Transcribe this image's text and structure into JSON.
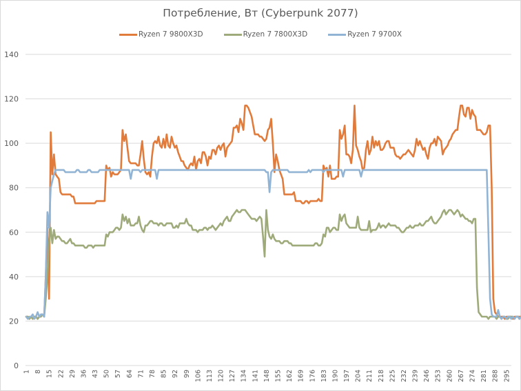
{
  "chart_data": {
    "type": "line",
    "title": "Потребление, Вт (Cyberpunk 2077)",
    "xlabel": "",
    "ylabel": "",
    "ylim": [
      0,
      140
    ],
    "yticks": [
      0,
      20,
      40,
      60,
      80,
      100,
      120,
      140
    ],
    "grid": true,
    "legend_position": "top",
    "x_tick_labels": [
      1,
      8,
      15,
      22,
      29,
      36,
      43,
      50,
      57,
      64,
      71,
      78,
      85,
      92,
      99,
      106,
      113,
      120,
      127,
      134,
      141,
      148,
      155,
      162,
      169,
      176,
      183,
      190,
      197,
      204,
      211,
      218,
      225,
      232,
      239,
      246,
      253,
      260,
      267,
      274,
      281,
      288,
      295
    ],
    "x_count": 298,
    "series": [
      {
        "name": "Ryzen 7 9800X3D",
        "color": "#e07b3c",
        "values": [
          22,
          22,
          21,
          22,
          21,
          22,
          22,
          21,
          22,
          22,
          23,
          22,
          40,
          62,
          30,
          105,
          86,
          95,
          86,
          85,
          84,
          78,
          77,
          77,
          77,
          77,
          77,
          77,
          76,
          76,
          73,
          73,
          73,
          73,
          73,
          73,
          73,
          73,
          73,
          73,
          73,
          73,
          73,
          74,
          74,
          74,
          74,
          74,
          74,
          90,
          88,
          89,
          85,
          87,
          86,
          86,
          86,
          87,
          88,
          106,
          101,
          104,
          98,
          92,
          91,
          91,
          91,
          91,
          90,
          90,
          95,
          101,
          93,
          87,
          86,
          87,
          85,
          94,
          100,
          101,
          100,
          103,
          99,
          98,
          102,
          98,
          104,
          99,
          98,
          103,
          100,
          98,
          99,
          96,
          94,
          92,
          92,
          90,
          89,
          88,
          90,
          91,
          90,
          94,
          88,
          92,
          93,
          91,
          96,
          96,
          94,
          90,
          94,
          93,
          97,
          97,
          95,
          98,
          99,
          97,
          99,
          100,
          94,
          98,
          99,
          100,
          101,
          107,
          107,
          108,
          105,
          111,
          109,
          106,
          117,
          117,
          116,
          114,
          112,
          108,
          104,
          104,
          104,
          103,
          103,
          102,
          101,
          102,
          106,
          107,
          111,
          100,
          87,
          95,
          92,
          88,
          86,
          84,
          77,
          77,
          77,
          77,
          77,
          77,
          78,
          74,
          74,
          74,
          74,
          73,
          73,
          74,
          74,
          73,
          74,
          74,
          74,
          74,
          74,
          75,
          74,
          74,
          90,
          88,
          89,
          85,
          90,
          84,
          84,
          84,
          85,
          85,
          106,
          102,
          104,
          108,
          95,
          95,
          94,
          91,
          97,
          117,
          99,
          97,
          94,
          92,
          88,
          89,
          97,
          101,
          95,
          97,
          103,
          98,
          101,
          99,
          101,
          97,
          97,
          98,
          100,
          101,
          101,
          98,
          98,
          98,
          95,
          94,
          94,
          93,
          94,
          95,
          95,
          96,
          97,
          96,
          95,
          94,
          97,
          102,
          99,
          101,
          99,
          97,
          98,
          95,
          93,
          98,
          100,
          100,
          102,
          99,
          103,
          102,
          101,
          95,
          97,
          98,
          99,
          101,
          102,
          104,
          105,
          106,
          106,
          112,
          117,
          117,
          113,
          112,
          116,
          116,
          111,
          115,
          113,
          112,
          106,
          106,
          106,
          105,
          104,
          104,
          105,
          108,
          108,
          80,
          30,
          24,
          23,
          22,
          22,
          22,
          22,
          21,
          22,
          22,
          22,
          22,
          21,
          22,
          22,
          22,
          22,
          22,
          21,
          22,
          23,
          22,
          22,
          22,
          21,
          22
        ]
      },
      {
        "name": "Ryzen 7 7800X3D",
        "color": "#9eaa7a",
        "values": [
          22,
          22,
          21,
          22,
          21,
          22,
          22,
          21,
          22,
          22,
          23,
          22,
          30,
          40,
          55,
          62,
          55,
          61,
          57,
          58,
          58,
          57,
          56,
          56,
          55,
          55,
          56,
          57,
          55,
          55,
          54,
          54,
          54,
          54,
          54,
          54,
          53,
          53,
          54,
          54,
          54,
          53,
          54,
          54,
          54,
          54,
          54,
          54,
          54,
          59,
          58,
          60,
          60,
          60,
          61,
          62,
          62,
          61,
          62,
          68,
          65,
          67,
          64,
          66,
          63,
          63,
          63,
          64,
          64,
          67,
          63,
          61,
          60,
          63,
          63,
          64,
          65,
          65,
          64,
          64,
          64,
          63,
          64,
          64,
          63,
          63,
          64,
          64,
          64,
          64,
          62,
          62,
          63,
          62,
          64,
          64,
          64,
          64,
          66,
          64,
          63,
          63,
          61,
          61,
          61,
          60,
          61,
          61,
          61,
          62,
          62,
          61,
          62,
          62,
          63,
          62,
          61,
          62,
          63,
          64,
          63,
          65,
          66,
          67,
          65,
          65,
          67,
          68,
          69,
          70,
          69,
          69,
          70,
          70,
          70,
          69,
          68,
          67,
          66,
          66,
          66,
          65,
          66,
          67,
          66,
          58,
          49,
          70,
          61,
          58,
          57,
          59,
          57,
          56,
          56,
          56,
          55,
          55,
          56,
          56,
          56,
          55,
          55,
          54,
          54,
          54,
          54,
          54,
          54,
          54,
          54,
          54,
          54,
          54,
          54,
          54,
          54,
          55,
          55,
          54,
          54,
          55,
          59,
          58,
          62,
          62,
          60,
          61,
          62,
          62,
          61,
          61,
          68,
          65,
          67,
          68,
          64,
          63,
          62,
          62,
          62,
          62,
          62,
          67,
          62,
          61,
          61,
          61,
          61,
          61,
          65,
          60,
          61,
          61,
          61,
          62,
          64,
          62,
          63,
          63,
          62,
          63,
          64,
          63,
          63,
          63,
          63,
          62,
          62,
          61,
          60,
          60,
          61,
          62,
          62,
          63,
          62,
          62,
          63,
          63,
          63,
          64,
          63,
          63,
          64,
          65,
          65,
          66,
          67,
          65,
          64,
          64,
          65,
          66,
          67,
          69,
          70,
          68,
          69,
          70,
          70,
          69,
          68,
          69,
          70,
          69,
          67,
          68,
          67,
          66,
          66,
          65,
          65,
          64,
          66,
          66,
          35,
          24,
          23,
          22,
          22,
          22,
          22,
          21,
          22,
          22,
          22,
          22,
          21,
          22,
          22,
          21,
          22,
          22,
          21,
          21,
          22,
          22,
          22,
          21,
          22,
          22,
          21
        ]
      },
      {
        "name": "Ryzen 7 9700X",
        "color": "#92b4d4",
        "values": [
          22,
          21,
          22,
          22,
          23,
          21,
          22,
          24,
          22,
          23,
          23,
          22,
          40,
          69,
          62,
          80,
          83,
          86,
          88,
          88,
          88,
          88,
          88,
          88,
          87,
          87,
          87,
          87,
          87,
          87,
          87,
          88,
          88,
          87,
          87,
          87,
          87,
          87,
          88,
          88,
          87,
          87,
          87,
          87,
          87,
          88,
          88,
          88,
          88,
          88,
          88,
          88,
          88,
          88,
          88,
          88,
          88,
          88,
          88,
          88,
          88,
          88,
          88,
          88,
          84,
          88,
          88,
          88,
          88,
          88,
          87,
          88,
          88,
          88,
          88,
          88,
          88,
          88,
          88,
          88,
          84,
          88,
          88,
          88,
          88,
          88,
          88,
          88,
          88,
          88,
          88,
          88,
          88,
          88,
          88,
          88,
          88,
          88,
          88,
          88,
          88,
          88,
          88,
          88,
          88,
          88,
          88,
          88,
          88,
          88,
          88,
          88,
          88,
          88,
          88,
          88,
          88,
          88,
          88,
          88,
          88,
          88,
          88,
          88,
          88,
          88,
          88,
          88,
          88,
          88,
          88,
          88,
          88,
          88,
          88,
          88,
          88,
          88,
          88,
          88,
          88,
          88,
          88,
          88,
          88,
          88,
          88,
          87,
          87,
          78,
          87,
          88,
          88,
          88,
          88,
          88,
          88,
          88,
          88,
          88,
          88,
          87,
          87,
          87,
          87,
          87,
          87,
          87,
          87,
          87,
          87,
          87,
          87,
          88,
          87,
          88,
          88,
          88,
          88,
          88,
          88,
          88,
          87,
          88,
          88,
          88,
          88,
          88,
          88,
          88,
          88,
          88,
          88,
          88,
          85,
          88,
          88,
          88,
          88,
          88,
          88,
          88,
          88,
          88,
          88,
          85,
          88,
          88,
          88,
          88,
          88,
          88,
          88,
          88,
          88,
          88,
          88,
          88,
          88,
          88,
          88,
          88,
          88,
          88,
          88,
          88,
          88,
          88,
          88,
          88,
          88,
          88,
          88,
          88,
          88,
          88,
          88,
          88,
          88,
          88,
          88,
          88,
          88,
          88,
          88,
          88,
          88,
          88,
          88,
          88,
          88,
          88,
          88,
          88,
          88,
          88,
          88,
          88,
          88,
          88,
          88,
          88,
          88,
          88,
          88,
          88,
          88,
          88,
          88,
          88,
          88,
          88,
          88,
          88,
          88,
          88,
          88,
          88,
          88,
          88,
          88,
          88,
          88,
          60,
          30,
          23,
          22,
          22,
          22,
          25,
          22,
          21,
          22,
          22,
          21,
          22,
          22,
          21,
          22,
          21,
          22,
          22,
          21,
          22,
          21,
          22,
          22,
          22,
          21,
          21,
          22
        ]
      }
    ]
  },
  "legend": {
    "items": [
      {
        "label": "Ryzen 7 9800X3D",
        "color": "#e07b3c"
      },
      {
        "label": "Ryzen 7 7800X3D",
        "color": "#9eaa7a"
      },
      {
        "label": "Ryzen 7 9700X",
        "color": "#92b4d4"
      }
    ]
  }
}
